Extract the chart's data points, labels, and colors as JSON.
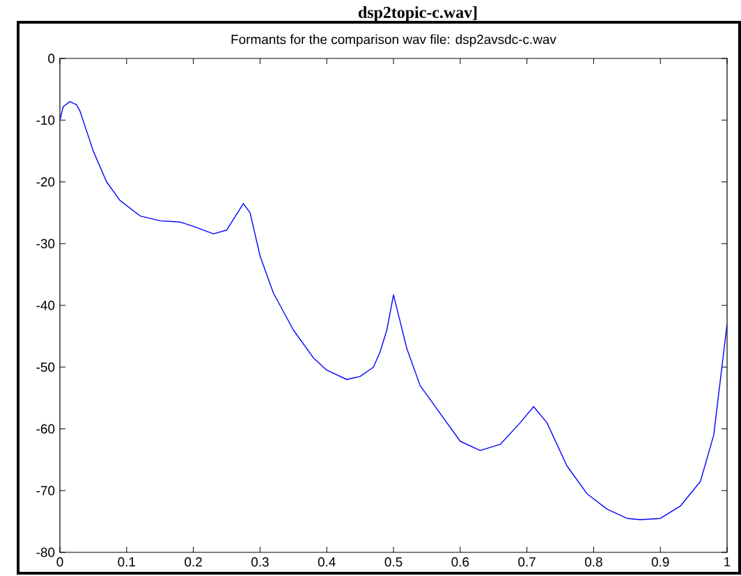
{
  "chart_data": {
    "type": "line",
    "title": "Formants for the comparison wav file: dsp2avsdc-c.wav",
    "annotations": [
      "dsp2topic-c.wav]"
    ],
    "xlim": [
      0,
      1
    ],
    "ylim": [
      -80,
      0
    ],
    "xticks": [
      0,
      0.1,
      0.2,
      0.3,
      0.4,
      0.5,
      0.6,
      0.7,
      0.8,
      0.9,
      1
    ],
    "yticks": [
      -80,
      -70,
      -60,
      -50,
      -40,
      -30,
      -20,
      -10,
      0
    ],
    "grid": false,
    "marker": "none",
    "line_style": "solid",
    "series": [
      {
        "color": "#0000ff",
        "x": [
          0,
          0.005,
          0.015,
          0.025,
          0.03,
          0.05,
          0.07,
          0.09,
          0.12,
          0.15,
          0.18,
          0.2,
          0.23,
          0.25,
          0.275,
          0.285,
          0.3,
          0.32,
          0.35,
          0.38,
          0.4,
          0.43,
          0.45,
          0.47,
          0.48,
          0.49,
          0.5,
          0.52,
          0.54,
          0.57,
          0.6,
          0.63,
          0.66,
          0.69,
          0.71,
          0.73,
          0.76,
          0.79,
          0.82,
          0.85,
          0.87,
          0.9,
          0.93,
          0.96,
          0.98,
          0.99,
          1.0
        ],
        "values": [
          -10,
          -7.8,
          -7,
          -7.5,
          -8.5,
          -15,
          -20,
          -23,
          -25.5,
          -26.3,
          -26.5,
          -27.2,
          -28.4,
          -27.8,
          -23.5,
          -25,
          -32,
          -38,
          -44,
          -48.5,
          -50.5,
          -52,
          -51.5,
          -50,
          -47.5,
          -44,
          -38.3,
          -47,
          -53,
          -57.5,
          -62,
          -63.5,
          -62.5,
          -59,
          -56.4,
          -59,
          -66,
          -70.5,
          -73,
          -74.5,
          -74.7,
          -74.5,
          -72.5,
          -68.5,
          -61,
          -52,
          -43
        ]
      }
    ]
  }
}
